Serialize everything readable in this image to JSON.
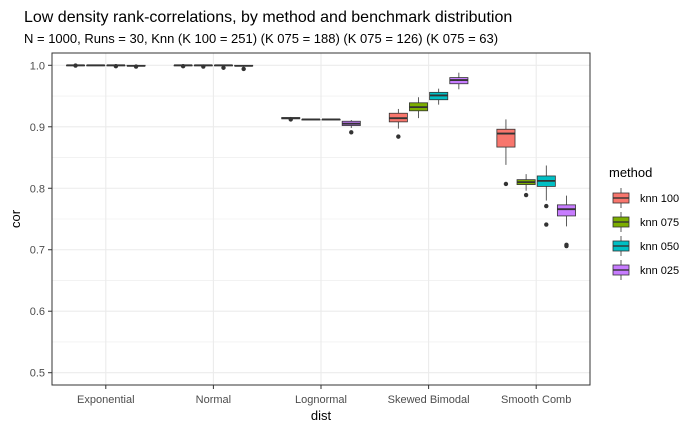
{
  "chart_data": {
    "type": "boxplot",
    "title": "Low density rank-correlations, by method and benchmark distribution",
    "subtitle": "N = 1000, Runs  = 30, Knn (K 100 = 251) (K 075 = 188) (K 075 = 126) (K 075 = 63)",
    "xlabel": "dist",
    "ylabel": "cor",
    "ylim": [
      0.48,
      1.02
    ],
    "yticks": [
      "0.5",
      "0.6",
      "0.7",
      "0.8",
      "0.9",
      "1.0"
    ],
    "grid": true,
    "legend": {
      "title": "method",
      "placement": "right"
    },
    "categories": [
      "Exponential",
      "Normal",
      "Lognormal",
      "Skewed Bimodal",
      "Smooth Comb"
    ],
    "series": [
      {
        "name": "knn 100",
        "color": "#F8766D",
        "boxes": [
          {
            "min": 0.999,
            "q1": 1.0,
            "median": 1.0,
            "q3": 1.0,
            "max": 1.0,
            "outliers": [
              0.9995
            ]
          },
          {
            "min": 0.999,
            "q1": 1.0,
            "median": 1.0,
            "q3": 1.0,
            "max": 1.0,
            "outliers": [
              0.9985
            ]
          },
          {
            "min": 0.912,
            "q1": 0.913,
            "median": 0.914,
            "q3": 0.915,
            "max": 0.916,
            "outliers": [
              0.912
            ]
          },
          {
            "min": 0.897,
            "q1": 0.908,
            "median": 0.914,
            "q3": 0.922,
            "max": 0.929,
            "outliers": [
              0.884
            ]
          },
          {
            "min": 0.838,
            "q1": 0.867,
            "median": 0.889,
            "q3": 0.896,
            "max": 0.912,
            "outliers": [
              0.807
            ]
          }
        ]
      },
      {
        "name": "knn 075",
        "color": "#7CAE00",
        "boxes": [
          {
            "min": 0.999,
            "q1": 1.0,
            "median": 1.0,
            "q3": 1.0,
            "max": 1.0,
            "outliers": []
          },
          {
            "min": 0.999,
            "q1": 1.0,
            "median": 1.0,
            "q3": 1.0,
            "max": 1.0,
            "outliers": [
              0.998
            ]
          },
          {
            "min": 0.911,
            "q1": 0.911,
            "median": 0.912,
            "q3": 0.912,
            "max": 0.913,
            "outliers": []
          },
          {
            "min": 0.914,
            "q1": 0.926,
            "median": 0.932,
            "q3": 0.939,
            "max": 0.948,
            "outliers": []
          },
          {
            "min": 0.796,
            "q1": 0.806,
            "median": 0.81,
            "q3": 0.814,
            "max": 0.823,
            "outliers": [
              0.789
            ]
          }
        ]
      },
      {
        "name": "knn 050",
        "color": "#00BFC4",
        "boxes": [
          {
            "min": 0.999,
            "q1": 1.0,
            "median": 1.0,
            "q3": 1.0,
            "max": 1.0,
            "outliers": [
              0.9985
            ]
          },
          {
            "min": 0.999,
            "q1": 1.0,
            "median": 1.0,
            "q3": 1.0,
            "max": 1.0,
            "outliers": [
              0.996
            ]
          },
          {
            "min": 0.911,
            "q1": 0.911,
            "median": 0.912,
            "q3": 0.912,
            "max": 0.913,
            "outliers": []
          },
          {
            "min": 0.936,
            "q1": 0.944,
            "median": 0.951,
            "q3": 0.956,
            "max": 0.962,
            "outliers": []
          },
          {
            "min": 0.78,
            "q1": 0.803,
            "median": 0.812,
            "q3": 0.82,
            "max": 0.837,
            "outliers": [
              0.771,
              0.741
            ]
          }
        ]
      },
      {
        "name": "knn 025",
        "color": "#C77CFF",
        "boxes": [
          {
            "min": 0.998,
            "q1": 0.999,
            "median": 0.999,
            "q3": 1.0,
            "max": 1.0,
            "outliers": [
              0.998
            ]
          },
          {
            "min": 0.997,
            "q1": 0.999,
            "median": 0.999,
            "q3": 1.0,
            "max": 1.0,
            "outliers": [
              0.994
            ]
          },
          {
            "min": 0.898,
            "q1": 0.902,
            "median": 0.905,
            "q3": 0.909,
            "max": 0.911,
            "outliers": [
              0.891
            ]
          },
          {
            "min": 0.961,
            "q1": 0.97,
            "median": 0.976,
            "q3": 0.98,
            "max": 0.988,
            "outliers": []
          },
          {
            "min": 0.738,
            "q1": 0.755,
            "median": 0.766,
            "q3": 0.773,
            "max": 0.788,
            "outliers": [
              0.708,
              0.706
            ]
          }
        ]
      }
    ]
  }
}
